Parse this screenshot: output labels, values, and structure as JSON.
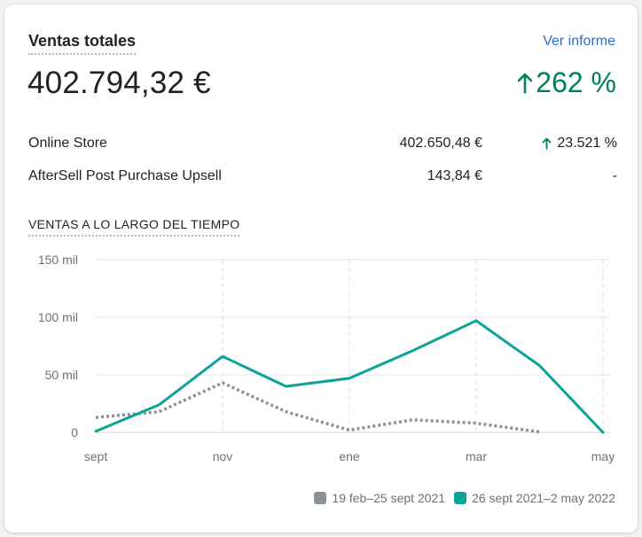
{
  "card": {
    "title": "Ventas totales",
    "report_link": "Ver informe",
    "total": "402.794,32 €",
    "change": "262 %",
    "change_direction": "up",
    "positive_color": "#007f5f"
  },
  "channels": [
    {
      "name": "Online Store",
      "amount": "402.650,48 €",
      "change": "23.521 %",
      "direction": "up"
    },
    {
      "name": "AfterSell Post Purchase Upsell",
      "amount": "143,84 €",
      "change": "-",
      "direction": "none"
    }
  ],
  "section_title": "VENTAS A LO LARGO DEL TIEMPO",
  "chart_data": {
    "type": "line",
    "y_ticks": [
      "150 mil",
      "100 mil",
      "50 mil",
      "0"
    ],
    "x_ticks": [
      "sept",
      "nov",
      "ene",
      "mar",
      "may"
    ],
    "ylim": [
      0,
      150000
    ],
    "grid": true,
    "legend_position": "bottom-right",
    "series": [
      {
        "name": "19 feb–25 sept 2021",
        "color": "#8c9196",
        "style": "dotted",
        "x": [
          0,
          1,
          2,
          3,
          4,
          5,
          6,
          7
        ],
        "values": [
          13000,
          18000,
          43000,
          18000,
          2000,
          11000,
          8000,
          500
        ]
      },
      {
        "name": "26 sept 2021–2 may 2022",
        "color": "#0aa396",
        "style": "solid",
        "x": [
          0,
          1,
          2,
          3,
          4,
          5,
          6,
          7,
          8
        ],
        "values": [
          1000,
          24000,
          66000,
          40000,
          47000,
          71000,
          97000,
          58000,
          0
        ]
      }
    ]
  }
}
